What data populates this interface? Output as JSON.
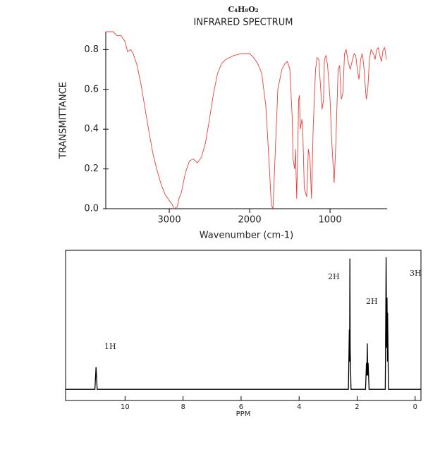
{
  "chart_data": [
    {
      "type": "line",
      "title": "C₄H₈O₂",
      "subtitle": "INFRARED SPECTRUM",
      "x_label": "Wavenumber (cm-1)",
      "y_label": "TRANSMITTANCE",
      "xlim": [
        3790,
        290
      ],
      "ylim": [
        0,
        0.89
      ],
      "xticks": [
        3000,
        2000,
        1000
      ],
      "yticks": [
        {
          "value": 0,
          "label": "0.0"
        },
        0.2,
        0.4,
        0.6,
        0.8
      ],
      "series": [
        {
          "color": "#e8413c",
          "x": [
            3790,
            3700,
            3650,
            3600,
            3550,
            3520,
            3480,
            3450,
            3400,
            3350,
            3300,
            3250,
            3200,
            3150,
            3100,
            3050,
            3000,
            2960,
            2940,
            2900,
            2880,
            2850,
            2800,
            2750,
            2700,
            2650,
            2600,
            2550,
            2500,
            2450,
            2400,
            2350,
            2300,
            2200,
            2100,
            2000,
            1950,
            1900,
            1850,
            1800,
            1760,
            1730,
            1710,
            1690,
            1650,
            1600,
            1560,
            1530,
            1500,
            1470,
            1460,
            1440,
            1430,
            1415,
            1400,
            1390,
            1380,
            1370,
            1350,
            1340,
            1320,
            1290,
            1270,
            1250,
            1230,
            1210,
            1180,
            1160,
            1140,
            1100,
            1080,
            1070,
            1050,
            1030,
            1000,
            980,
            950,
            930,
            900,
            880,
            860,
            840,
            820,
            800,
            780,
            750,
            720,
            700,
            680,
            660,
            640,
            620,
            600,
            580,
            550,
            530,
            510,
            490,
            460,
            440,
            420,
            400,
            380,
            360,
            340,
            320,
            300
          ],
          "values": [
            0.89,
            0.89,
            0.87,
            0.87,
            0.84,
            0.79,
            0.8,
            0.78,
            0.72,
            0.62,
            0.5,
            0.38,
            0.27,
            0.19,
            0.12,
            0.07,
            0.04,
            0.02,
            0.0,
            0.01,
            0.05,
            0.08,
            0.18,
            0.24,
            0.25,
            0.23,
            0.26,
            0.33,
            0.45,
            0.58,
            0.68,
            0.73,
            0.75,
            0.77,
            0.78,
            0.78,
            0.76,
            0.73,
            0.68,
            0.52,
            0.25,
            0.02,
            0.0,
            0.2,
            0.6,
            0.7,
            0.73,
            0.74,
            0.7,
            0.45,
            0.25,
            0.2,
            0.3,
            0.05,
            0.35,
            0.55,
            0.57,
            0.4,
            0.45,
            0.4,
            0.1,
            0.06,
            0.3,
            0.25,
            0.05,
            0.4,
            0.7,
            0.76,
            0.75,
            0.5,
            0.55,
            0.75,
            0.77,
            0.72,
            0.55,
            0.35,
            0.13,
            0.3,
            0.7,
            0.72,
            0.55,
            0.58,
            0.78,
            0.8,
            0.75,
            0.7,
            0.75,
            0.78,
            0.77,
            0.7,
            0.65,
            0.75,
            0.78,
            0.72,
            0.55,
            0.6,
            0.75,
            0.8,
            0.78,
            0.75,
            0.8,
            0.81,
            0.77,
            0.74,
            0.8,
            0.81,
            0.75
          ]
        }
      ]
    },
    {
      "type": "line",
      "x_label": "PPM",
      "xlim": [
        12.05,
        -0.2
      ],
      "ylim": [
        -0.08,
        1
      ],
      "xticks": [
        10,
        8,
        6,
        4,
        2,
        0
      ],
      "annotations": [
        "1H",
        "2H",
        "2H",
        "3H"
      ],
      "series": [
        {
          "color": "#000000",
          "x": [
            12.05,
            11.04,
            11.0,
            10.96,
            2.3,
            2.27,
            2.26,
            2.25,
            2.24,
            2.21,
            1.71,
            1.68,
            1.665,
            1.65,
            1.635,
            1.62,
            1.59,
            1.03,
            1.0,
            0.985,
            0.97,
            0.955,
            0.95,
            0.92,
            -0.2
          ],
          "values": [
            0,
            0,
            0.16,
            0,
            0,
            0.43,
            0.2,
            0.94,
            0.3,
            0,
            0,
            0.19,
            0.1,
            0.33,
            0.1,
            0.19,
            0,
            0,
            0.95,
            0.3,
            0.66,
            0.2,
            0.55,
            0,
            0
          ]
        }
      ]
    }
  ]
}
